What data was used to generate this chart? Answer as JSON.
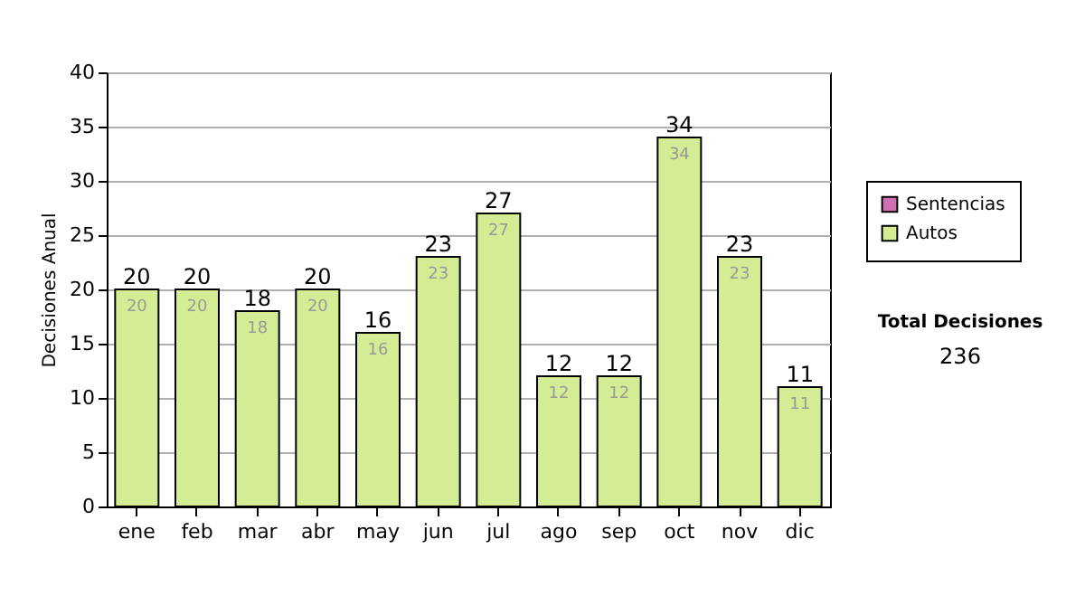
{
  "chart_data": {
    "type": "bar",
    "stacked": true,
    "ylabel": "Decisiones Anual",
    "categories": [
      "ene",
      "feb",
      "mar",
      "abr",
      "may",
      "jun",
      "jul",
      "ago",
      "sep",
      "oct",
      "nov",
      "dic"
    ],
    "series": [
      {
        "name": "Sentencias",
        "color": "#d070b0",
        "values": [
          0,
          0,
          0,
          0,
          0,
          0,
          0,
          0,
          0,
          0,
          0,
          0
        ]
      },
      {
        "name": "Autos",
        "color": "#d4ec94",
        "values": [
          20,
          20,
          18,
          20,
          16,
          23,
          27,
          12,
          12,
          34,
          23,
          11
        ],
        "value_labels": [
          "20",
          "20",
          "18",
          "20",
          "16",
          "23",
          "27",
          "12",
          "12",
          "34",
          "23",
          "11"
        ]
      }
    ],
    "totals": [
      "20",
      "20",
      "18",
      "20",
      "16",
      "23",
      "27",
      "12",
      "12",
      "34",
      "23",
      "11"
    ],
    "ylim": [
      0,
      40
    ],
    "yticks": [
      0,
      5,
      10,
      15,
      20,
      25,
      30,
      35,
      40
    ],
    "grid": "y",
    "legend": "right",
    "annotations": [
      "Total Decisiones",
      "236"
    ]
  }
}
